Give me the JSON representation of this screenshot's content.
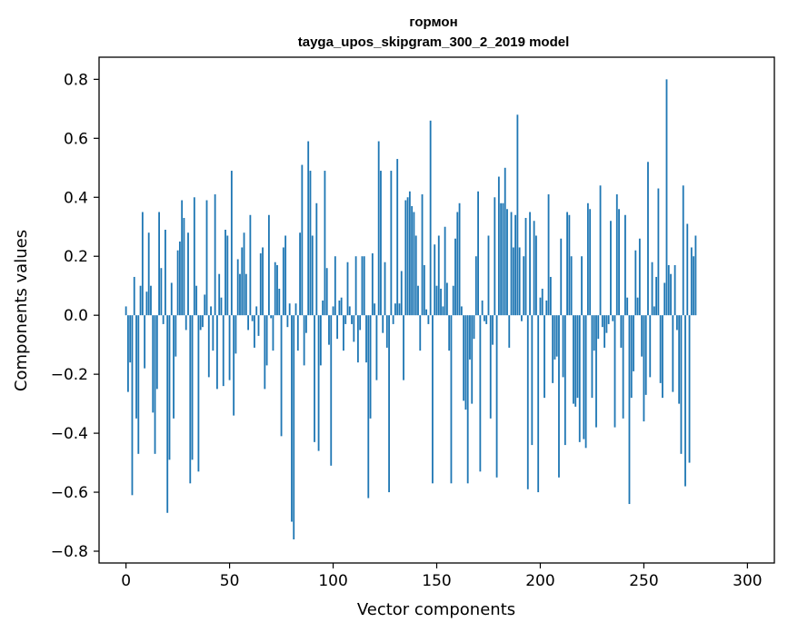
{
  "chart_data": {
    "type": "bar",
    "title": "гормон",
    "subtitle": "tayga_upos_skipgram_300_2_2019 model",
    "xlabel": "Vector components",
    "ylabel": "Components values",
    "xlim": [
      -13,
      313
    ],
    "ylim": [
      -0.84,
      0.875
    ],
    "xticks": [
      0,
      50,
      100,
      150,
      200,
      250,
      300
    ],
    "xtick_labels": [
      "0",
      "50",
      "100",
      "150",
      "200",
      "250",
      "300"
    ],
    "yticks": [
      -0.8,
      -0.6,
      -0.4,
      -0.2,
      0.0,
      0.2,
      0.4,
      0.6,
      0.8
    ],
    "ytick_labels": [
      "−0.8",
      "−0.6",
      "−0.4",
      "−0.2",
      "0.0",
      "0.2",
      "0.4",
      "0.6",
      "0.8"
    ],
    "bar_color": "#1f77b4",
    "grid": false,
    "series": [
      {
        "name": "гормон",
        "values": [
          0.03,
          -0.26,
          -0.16,
          -0.61,
          0.13,
          -0.35,
          -0.47,
          0.1,
          0.35,
          -0.18,
          0.08,
          0.28,
          0.1,
          -0.33,
          -0.47,
          -0.25,
          0.35,
          0.16,
          -0.03,
          0.29,
          -0.67,
          -0.49,
          0.11,
          -0.35,
          -0.14,
          0.22,
          0.25,
          0.39,
          0.33,
          -0.05,
          0.28,
          -0.57,
          -0.49,
          0.4,
          0.1,
          -0.53,
          -0.05,
          -0.04,
          0.07,
          0.39,
          -0.21,
          0.03,
          -0.12,
          0.41,
          -0.25,
          0.14,
          0.06,
          -0.24,
          0.29,
          0.27,
          -0.22,
          0.49,
          -0.34,
          -0.13,
          0.19,
          0.14,
          0.23,
          0.28,
          0.14,
          -0.05,
          0.34,
          -0.02,
          -0.11,
          0.03,
          -0.07,
          0.21,
          0.23,
          -0.25,
          -0.17,
          0.34,
          -0.01,
          -0.12,
          0.18,
          0.17,
          0.09,
          -0.41,
          0.23,
          0.27,
          -0.04,
          0.04,
          -0.7,
          -0.76,
          0.04,
          -0.12,
          0.28,
          0.51,
          -0.17,
          -0.06,
          0.59,
          0.49,
          0.27,
          -0.43,
          0.38,
          -0.46,
          -0.17,
          0.05,
          0.49,
          0.16,
          -0.1,
          -0.51,
          0.03,
          0.2,
          -0.08,
          0.05,
          0.06,
          -0.12,
          -0.03,
          0.18,
          0.03,
          -0.03,
          -0.09,
          0.2,
          -0.16,
          -0.05,
          0.2,
          0.2,
          -0.16,
          -0.62,
          -0.35,
          0.21,
          0.04,
          -0.22,
          0.59,
          0.49,
          -0.06,
          0.18,
          -0.11,
          -0.6,
          0.49,
          -0.03,
          0.04,
          0.53,
          0.04,
          0.15,
          -0.22,
          0.39,
          0.4,
          0.42,
          0.37,
          0.35,
          0.27,
          0.1,
          -0.12,
          0.41,
          0.17,
          0.02,
          -0.03,
          0.66,
          -0.57,
          0.24,
          0.1,
          0.27,
          0.09,
          0.03,
          0.3,
          0.11,
          -0.12,
          -0.57,
          0.1,
          0.26,
          0.35,
          0.38,
          0.03,
          -0.29,
          -0.32,
          -0.57,
          -0.15,
          -0.3,
          -0.08,
          0.2,
          0.42,
          -0.53,
          0.05,
          -0.02,
          -0.03,
          0.27,
          -0.35,
          -0.1,
          0.4,
          -0.55,
          0.47,
          0.38,
          0.38,
          0.5,
          0.36,
          -0.11,
          0.35,
          0.23,
          0.34,
          0.68,
          0.23,
          -0.02,
          0.2,
          0.33,
          -0.59,
          0.35,
          -0.44,
          0.32,
          0.27,
          -0.6,
          0.06,
          0.09,
          -0.28,
          0.05,
          0.41,
          0.13,
          -0.23,
          -0.15,
          -0.14,
          -0.55,
          0.26,
          -0.21,
          -0.44,
          0.35,
          0.34,
          0.2,
          -0.3,
          -0.31,
          -0.28,
          -0.43,
          0.2,
          -0.42,
          -0.45,
          0.38,
          0.36,
          -0.28,
          -0.12,
          -0.38,
          -0.08,
          0.44,
          -0.04,
          -0.11,
          -0.06,
          -0.03,
          0.32,
          -0.02,
          -0.38,
          0.41,
          0.36,
          -0.11,
          -0.35,
          0.34,
          0.06,
          -0.64,
          -0.28,
          -0.19,
          0.22,
          0.06,
          0.26,
          -0.14,
          -0.36,
          -0.27,
          0.52,
          -0.21,
          0.18,
          0.03,
          0.13,
          0.43,
          -0.23,
          -0.28,
          0.11,
          0.8,
          0.17,
          0.14,
          -0.26,
          0.17,
          -0.05,
          -0.3,
          -0.47,
          0.44,
          -0.58,
          0.31,
          -0.5,
          0.23,
          0.2,
          0.27
        ]
      }
    ]
  }
}
